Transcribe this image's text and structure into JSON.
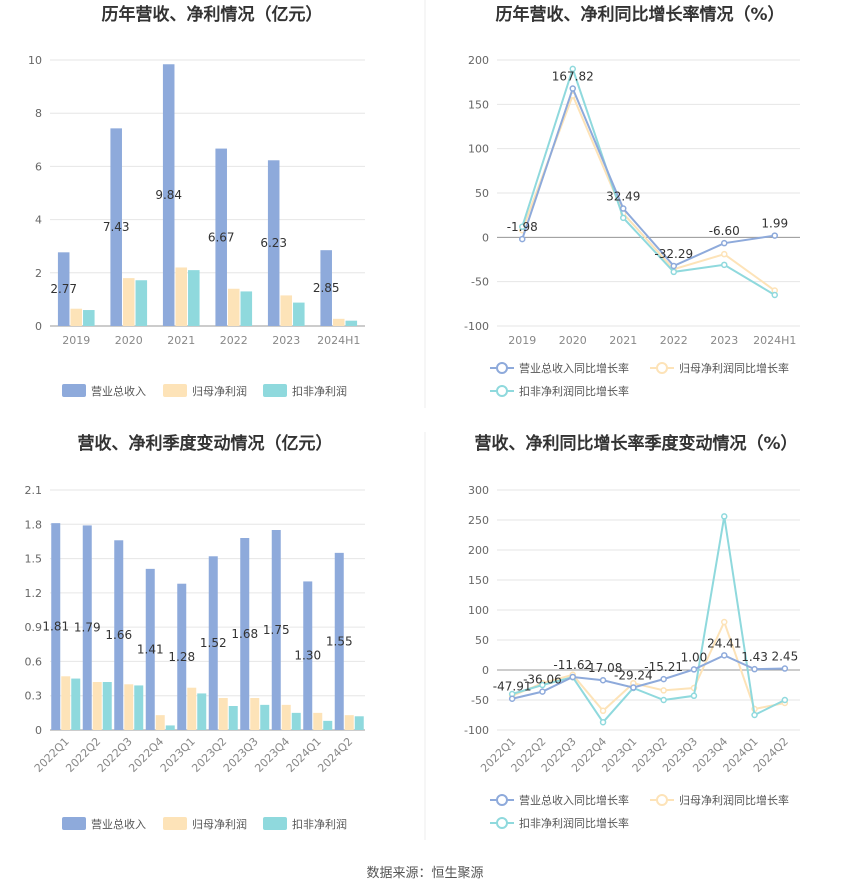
{
  "source_text": "数据来源：恒生聚源",
  "colors": {
    "revenue": "#8eaadb",
    "parent_profit": "#fde3b8",
    "deducted_profit": "#8fd9dd",
    "grid": "#e6e6e6",
    "axis": "#999999",
    "text": "#555555",
    "title": "#333333"
  },
  "chart_data": [
    {
      "type": "bar",
      "title": "历年营收、净利情况（亿元）",
      "categories": [
        "2019",
        "2020",
        "2021",
        "2022",
        "2023",
        "2024H1"
      ],
      "y_ticks": [
        "0",
        "2",
        "4",
        "6",
        "8",
        "10"
      ],
      "ylim": [
        0,
        10
      ],
      "series": [
        {
          "name": "营业总收入",
          "values": [
            2.77,
            7.43,
            9.84,
            6.67,
            6.23,
            2.85
          ],
          "labels": [
            "2.77",
            "7.43",
            "9.84",
            "6.67",
            "6.23",
            "2.85"
          ]
        },
        {
          "name": "归母净利润",
          "values": [
            0.65,
            1.8,
            2.2,
            1.4,
            1.15,
            0.27
          ]
        },
        {
          "name": "扣非净利润",
          "values": [
            0.6,
            1.72,
            2.1,
            1.3,
            0.88,
            0.2
          ]
        }
      ],
      "legend": "bottom"
    },
    {
      "type": "line",
      "title": "历年营收、净利同比增长率情况（%）",
      "categories": [
        "2019",
        "2020",
        "2021",
        "2022",
        "2023",
        "2024H1"
      ],
      "y_ticks": [
        "200",
        "150",
        "100",
        "50",
        "0",
        "-50",
        "-100"
      ],
      "ylim": [
        -100,
        200
      ],
      "series": [
        {
          "name": "营业总收入同比增长率",
          "values": [
            -1.98,
            167.82,
            32.49,
            -32.29,
            -6.6,
            1.99
          ],
          "labels": [
            "-1.98",
            "167.82",
            "32.49",
            "-32.29",
            "-6.60",
            "1.99"
          ]
        },
        {
          "name": "归母净利润同比增长率",
          "values": [
            8,
            160,
            27,
            -36,
            -19,
            -60
          ]
        },
        {
          "name": "扣非净利润同比增长率",
          "values": [
            12,
            190,
            22,
            -39,
            -31,
            -65
          ]
        }
      ],
      "legend": "bottom"
    },
    {
      "type": "bar",
      "title": "营收、净利季度变动情况（亿元）",
      "categories": [
        "2022Q1",
        "2022Q2",
        "2022Q3",
        "2022Q4",
        "2023Q1",
        "2023Q2",
        "2023Q3",
        "2023Q4",
        "2024Q1",
        "2024Q2"
      ],
      "y_ticks": [
        "0",
        "0.3",
        "0.6",
        "0.9",
        "1.2",
        "1.5",
        "1.8",
        "2.1"
      ],
      "ylim": [
        0,
        2.1
      ],
      "series": [
        {
          "name": "营业总收入",
          "values": [
            1.81,
            1.79,
            1.66,
            1.41,
            1.28,
            1.52,
            1.68,
            1.75,
            1.3,
            1.55
          ],
          "labels": [
            "1.81",
            "1.79",
            "1.66",
            "1.41",
            "1.28",
            "1.52",
            "1.68",
            "1.75",
            "1.30",
            "1.55"
          ]
        },
        {
          "name": "归母净利润",
          "values": [
            0.47,
            0.42,
            0.4,
            0.13,
            0.37,
            0.28,
            0.28,
            0.22,
            0.15,
            0.13
          ]
        },
        {
          "name": "扣非净利润",
          "values": [
            0.45,
            0.42,
            0.39,
            0.04,
            0.32,
            0.21,
            0.22,
            0.15,
            0.08,
            0.12
          ]
        }
      ],
      "legend": "bottom"
    },
    {
      "type": "line",
      "title": "营收、净利同比增长率季度变动情况（%）",
      "categories": [
        "2022Q1",
        "2022Q2",
        "2022Q3",
        "2022Q4",
        "2023Q1",
        "2023Q2",
        "2023Q3",
        "2023Q4",
        "2024Q1",
        "2024Q2"
      ],
      "y_ticks": [
        "300",
        "250",
        "200",
        "150",
        "100",
        "50",
        "0",
        "-50",
        "-100"
      ],
      "ylim": [
        -100,
        300
      ],
      "series": [
        {
          "name": "营业总收入同比增长率",
          "values": [
            -47.91,
            -36.06,
            -11.62,
            -17.08,
            -29.24,
            -15.21,
            1.0,
            24.41,
            1.43,
            2.45
          ],
          "labels": [
            "-47.91",
            "-36.06",
            "-11.62",
            "-17.08",
            "-29.24",
            "-15.21",
            "1.00",
            "24.41",
            "1.43",
            "2.45"
          ]
        },
        {
          "name": "归母净利润同比增长率",
          "values": [
            -43,
            -22,
            -8,
            -68,
            -22,
            -34,
            -30,
            80,
            -65,
            -55
          ]
        },
        {
          "name": "扣非净利润同比增长率",
          "values": [
            -40,
            -25,
            -12,
            -87,
            -30,
            -50,
            -43,
            256,
            -75,
            -50
          ]
        }
      ],
      "legend": "bottom"
    }
  ]
}
